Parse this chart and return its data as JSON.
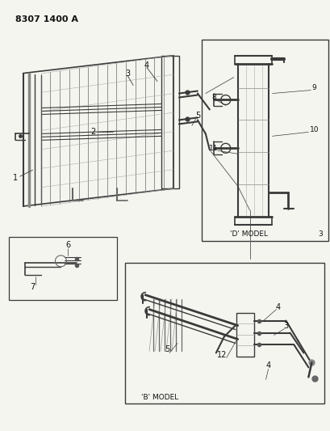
{
  "title": "8307 1400 A",
  "bg": "#f5f5f0",
  "lc": "#3a3a3a",
  "lc_light": "#888888",
  "tc": "#111111",
  "fig_w": 4.1,
  "fig_h": 5.33,
  "dpi": 100,
  "d_model_label": "'D' MODEL",
  "b_model_label": "'B' MODEL"
}
